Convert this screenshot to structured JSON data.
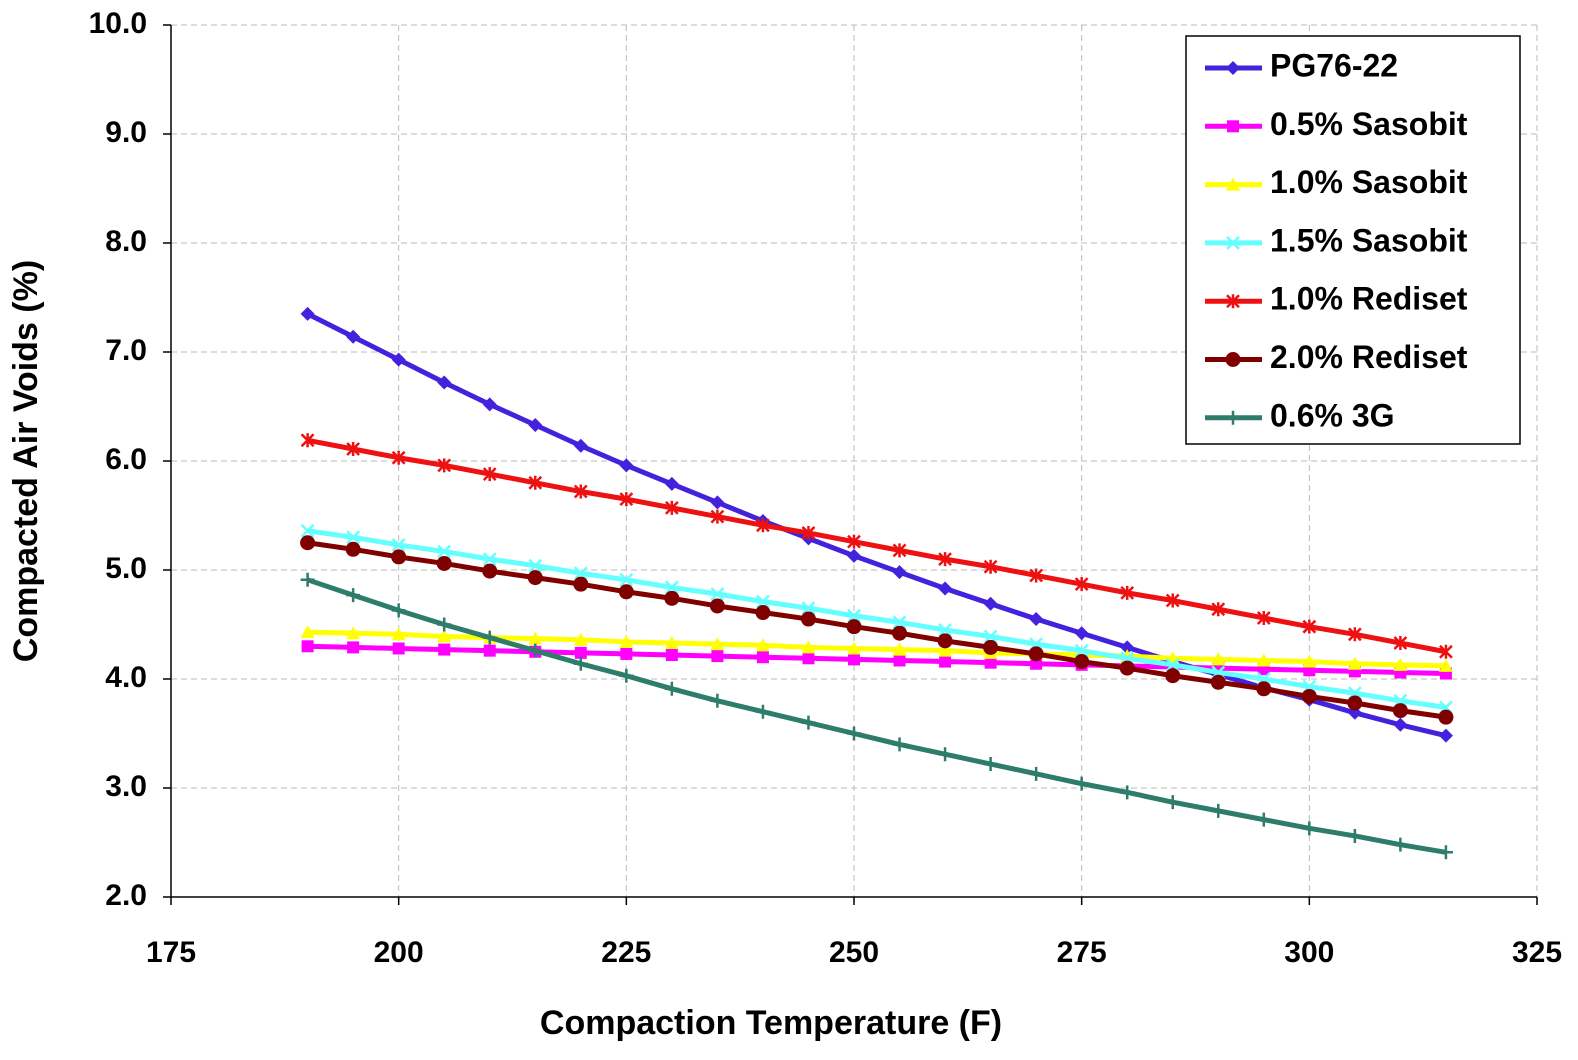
{
  "chart_data": {
    "type": "line",
    "x_label": "Compaction Temperature (F)",
    "y_label": "Compacted Air Voids (%)",
    "x": [
      190,
      195,
      200,
      205,
      210,
      215,
      220,
      225,
      230,
      235,
      240,
      245,
      250,
      255,
      260,
      265,
      270,
      275,
      280,
      285,
      290,
      295,
      300,
      305,
      310,
      315
    ],
    "xlim": [
      175,
      325
    ],
    "xticks": [
      175,
      200,
      225,
      250,
      275,
      300,
      325
    ],
    "ylim": [
      2,
      10
    ],
    "yticks": [
      {
        "value": 2,
        "label": "2.0"
      },
      {
        "value": 3,
        "label": "3.0"
      },
      {
        "value": 4,
        "label": "4.0"
      },
      {
        "value": 5,
        "label": "5.0"
      },
      {
        "value": 6,
        "label": "6.0"
      },
      {
        "value": 7,
        "label": "7.0"
      },
      {
        "value": 8,
        "label": "8.0"
      },
      {
        "value": 9,
        "label": "9.0"
      },
      {
        "value": 10,
        "label": "10.0"
      }
    ],
    "grid": true,
    "legend": "upper right",
    "series": [
      {
        "name": "PG76-22",
        "color": "#4422dd",
        "marker": "diamond",
        "values": [
          7.35,
          7.14,
          6.93,
          6.72,
          6.52,
          6.33,
          6.14,
          5.96,
          5.79,
          5.62,
          5.45,
          5.29,
          5.13,
          4.98,
          4.83,
          4.69,
          4.55,
          4.42,
          4.29,
          4.16,
          4.04,
          3.92,
          3.81,
          3.69,
          3.58,
          3.48
        ]
      },
      {
        "name": "0.5% Sasobit",
        "color": "#ff00ff",
        "marker": "square",
        "values": [
          4.3,
          4.29,
          4.28,
          4.27,
          4.26,
          4.25,
          4.24,
          4.23,
          4.22,
          4.21,
          4.2,
          4.19,
          4.18,
          4.17,
          4.16,
          4.15,
          4.14,
          4.13,
          4.12,
          4.11,
          4.1,
          4.09,
          4.08,
          4.07,
          4.06,
          4.05
        ]
      },
      {
        "name": "1.0% Sasobit",
        "color": "#ffff00",
        "marker": "triangle",
        "values": [
          4.43,
          4.42,
          4.41,
          4.39,
          4.38,
          4.37,
          4.36,
          4.34,
          4.33,
          4.32,
          4.31,
          4.29,
          4.28,
          4.27,
          4.26,
          4.24,
          4.23,
          4.22,
          4.21,
          4.19,
          4.18,
          4.17,
          4.16,
          4.14,
          4.13,
          4.12
        ]
      },
      {
        "name": "1.5% Sasobit",
        "color": "#66ffff",
        "marker": "x",
        "values": [
          5.36,
          5.3,
          5.23,
          5.17,
          5.1,
          5.04,
          4.97,
          4.91,
          4.84,
          4.78,
          4.71,
          4.65,
          4.58,
          4.52,
          4.45,
          4.39,
          4.32,
          4.26,
          4.19,
          4.13,
          4.06,
          4.0,
          3.93,
          3.87,
          3.8,
          3.74
        ]
      },
      {
        "name": "1.0% Rediset",
        "color": "#ee1111",
        "marker": "star",
        "values": [
          6.19,
          6.11,
          6.03,
          5.96,
          5.88,
          5.8,
          5.72,
          5.65,
          5.57,
          5.49,
          5.41,
          5.34,
          5.26,
          5.18,
          5.1,
          5.03,
          4.95,
          4.87,
          4.79,
          4.72,
          4.64,
          4.56,
          4.48,
          4.41,
          4.33,
          4.25
        ]
      },
      {
        "name": "2.0% Rediset",
        "color": "#800000",
        "marker": "circle",
        "values": [
          5.25,
          5.19,
          5.12,
          5.06,
          4.99,
          4.93,
          4.87,
          4.8,
          4.74,
          4.67,
          4.61,
          4.55,
          4.48,
          4.42,
          4.35,
          4.29,
          4.23,
          4.16,
          4.1,
          4.03,
          3.97,
          3.91,
          3.84,
          3.78,
          3.71,
          3.65
        ]
      },
      {
        "name": "0.6% 3G",
        "color": "#2e7d6b",
        "marker": "plus",
        "values": [
          4.91,
          4.77,
          4.63,
          4.5,
          4.38,
          4.26,
          4.14,
          4.03,
          3.91,
          3.8,
          3.7,
          3.6,
          3.5,
          3.4,
          3.31,
          3.22,
          3.13,
          3.04,
          2.96,
          2.87,
          2.79,
          2.71,
          2.63,
          2.56,
          2.48,
          2.41
        ]
      }
    ]
  }
}
